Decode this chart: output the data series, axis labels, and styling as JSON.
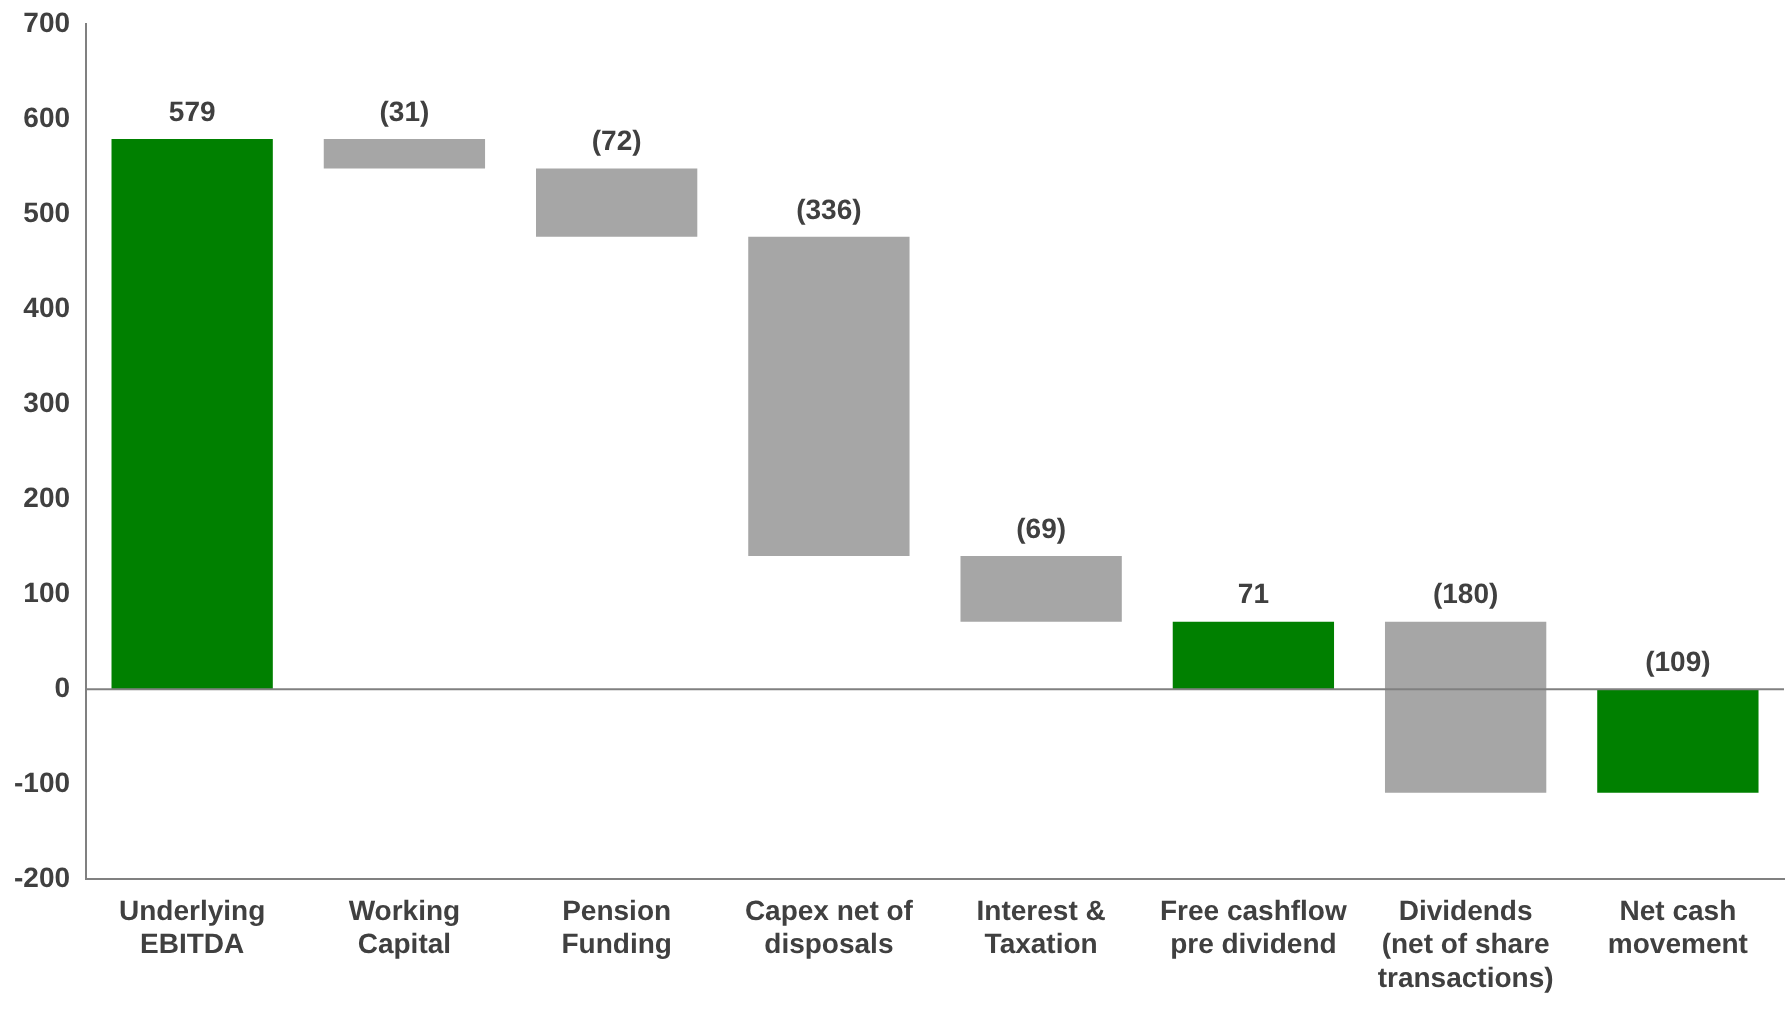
{
  "chart_data": {
    "type": "bar",
    "categories": [
      "Underlying\nEBITDA",
      "Working\nCapital",
      "Pension\nFunding",
      "Capex net of\ndisposals",
      "Interest &\nTaxation",
      "Free cashflow\npre dividend",
      "Dividends\n(net of share\ntransactions)",
      "Net cash\nmovement"
    ],
    "values": [
      579,
      -31,
      -72,
      -336,
      -69,
      71,
      -180,
      -109
    ],
    "base": [
      0,
      579,
      548,
      476,
      140,
      0,
      71,
      0
    ],
    "colors": [
      "#008000",
      "#a6a6a6",
      "#a6a6a6",
      "#a6a6a6",
      "#a6a6a6",
      "#008000",
      "#a6a6a6",
      "#008000"
    ],
    "value_labels": [
      "579",
      "(31)",
      "(72)",
      "(336)",
      "(69)",
      "71",
      "(180)",
      "(109)"
    ],
    "ylim": [
      -200,
      700
    ],
    "yticks": [
      -200,
      -100,
      0,
      100,
      200,
      300,
      400,
      500,
      600,
      700
    ],
    "ref_lines": [
      {
        "axis": "y",
        "value": 0,
        "color": "#808080"
      }
    ],
    "grid": false,
    "legend": false
  }
}
